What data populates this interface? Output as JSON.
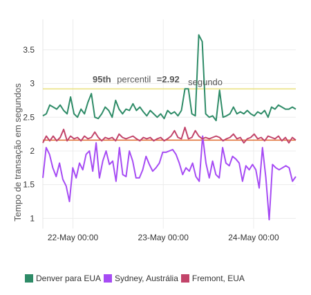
{
  "chart_data": {
    "type": "line",
    "ylabel": "Tempo de transação em segundos",
    "ylim": [
      0.85,
      3.95
    ],
    "yticks": [
      1,
      1.5,
      2,
      2.5,
      3,
      3.5
    ],
    "ytick_labels": [
      "1",
      "1.5",
      "2",
      "2.5",
      "3",
      "3.5"
    ],
    "xlim": [
      0,
      2.8
    ],
    "xticks": [
      0.333,
      1.333,
      2.333
    ],
    "xtick_labels": [
      "22-May 00:00",
      "23-May 00:00",
      "24-May 00:00"
    ],
    "grid": true,
    "legend_position": "bottom",
    "reference_lines": [
      {
        "value": 2.92,
        "color": "#e9e07a"
      },
      {
        "value": 2.16,
        "color": "#e06b2e"
      }
    ],
    "annotation": {
      "bold_part": "95th",
      "text_part": "percentil",
      "value_part": "=2.92",
      "unit_part": "segundo"
    },
    "series": [
      {
        "name": "Denver para EUA",
        "color": "#2e8b67",
        "values": [
          2.52,
          2.55,
          2.68,
          2.65,
          2.62,
          2.68,
          2.6,
          2.55,
          2.8,
          2.55,
          2.5,
          2.62,
          2.55,
          2.72,
          2.85,
          2.5,
          2.48,
          2.55,
          2.65,
          2.6,
          2.5,
          2.75,
          2.62,
          2.55,
          2.62,
          2.6,
          2.7,
          2.6,
          2.65,
          2.58,
          2.52,
          2.6,
          2.55,
          2.5,
          2.55,
          2.48,
          2.6,
          2.55,
          2.58,
          2.52,
          2.6,
          2.92,
          2.92,
          2.55,
          2.52,
          3.72,
          3.62,
          2.55,
          2.5,
          2.52,
          2.45,
          2.9,
          2.5,
          2.52,
          2.55,
          2.65,
          2.55,
          2.58,
          2.55,
          2.6,
          2.55,
          2.52,
          2.58,
          2.55,
          2.6,
          2.5,
          2.65,
          2.62,
          2.68,
          2.65,
          2.62,
          2.62,
          2.65,
          2.62
        ]
      },
      {
        "name": "Sydney, Austrália",
        "color": "#a64bf4",
        "values": [
          1.6,
          2.05,
          1.95,
          1.75,
          1.62,
          1.82,
          1.58,
          1.48,
          1.25,
          1.75,
          1.6,
          1.82,
          1.72,
          1.95,
          2.0,
          1.7,
          2.12,
          1.6,
          1.85,
          2.0,
          1.8,
          1.85,
          1.55,
          2.05,
          1.65,
          1.62,
          2.0,
          1.85,
          1.6,
          1.6,
          1.72,
          1.92,
          1.8,
          1.7,
          1.75,
          1.82,
          1.98,
          1.98,
          2.0,
          2.02,
          1.95,
          1.82,
          1.65,
          1.75,
          1.7,
          1.82,
          1.62,
          1.55,
          2.22,
          1.82,
          1.6,
          1.85,
          1.65,
          1.6,
          2.05,
          1.82,
          1.78,
          1.92,
          1.88,
          1.82,
          1.55,
          1.78,
          1.72,
          1.8,
          1.72,
          1.45,
          2.05,
          1.6,
          0.98,
          1.8,
          1.75,
          1.72,
          1.75,
          1.78,
          1.75,
          1.55,
          1.62
        ]
      },
      {
        "name": "Fremont, EUA",
        "color": "#c2446a",
        "values": [
          2.12,
          2.22,
          2.15,
          2.22,
          2.15,
          2.2,
          2.32,
          2.15,
          2.22,
          2.18,
          2.2,
          2.15,
          2.22,
          2.18,
          2.2,
          2.28,
          2.2,
          2.15,
          2.2,
          2.18,
          2.2,
          2.15,
          2.25,
          2.2,
          2.18,
          2.2,
          2.22,
          2.18,
          2.15,
          2.2,
          2.18,
          2.2,
          2.15,
          2.18,
          2.2,
          2.15,
          2.18,
          2.22,
          2.3,
          2.2,
          2.18,
          2.35,
          2.18,
          2.2,
          2.3,
          2.22,
          2.18,
          2.2,
          2.18,
          2.2,
          2.22,
          2.2,
          2.15,
          2.18,
          2.2,
          2.25,
          2.18,
          2.2,
          2.12,
          2.18,
          2.2,
          2.25,
          2.18,
          2.2,
          2.15,
          2.22,
          2.2,
          2.18,
          2.22,
          2.15,
          2.2,
          2.12,
          2.2,
          2.16
        ]
      }
    ]
  }
}
